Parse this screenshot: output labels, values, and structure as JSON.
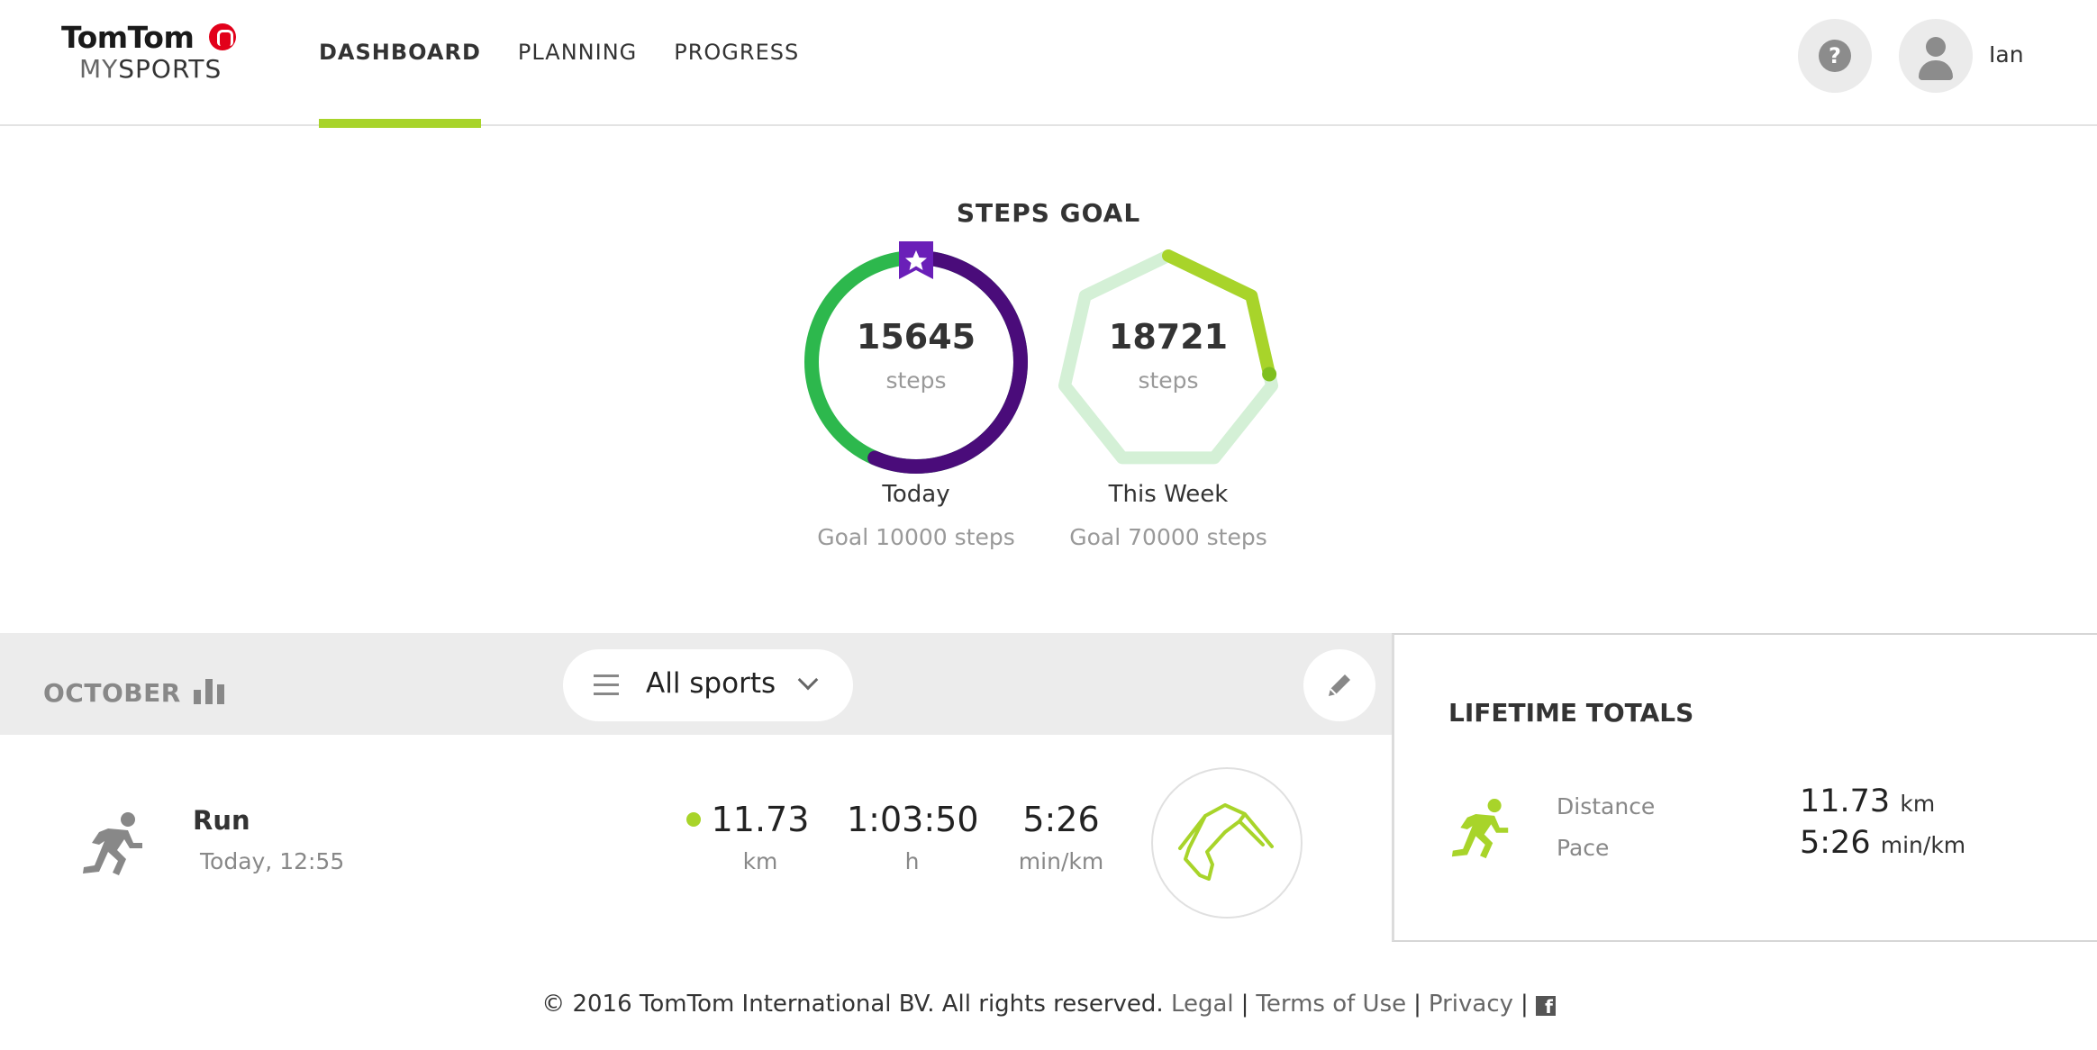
{
  "brand": {
    "name_top": "TomTom",
    "name_sub_dim": "MY",
    "name_sub": "SPORTS",
    "accent_color": "#a8d42a",
    "logo_color": "#e2001a"
  },
  "nav": {
    "items": [
      {
        "label": "DASHBOARD",
        "active": true
      },
      {
        "label": "PLANNING",
        "active": false
      },
      {
        "label": "PROGRESS",
        "active": false
      }
    ]
  },
  "header": {
    "help_icon": "help-bubble-icon",
    "user_name": "Ian"
  },
  "steps_goal": {
    "title": "STEPS GOAL",
    "today": {
      "count": "15645",
      "unit": "steps",
      "label": "Today",
      "goal": "Goal 10000 steps",
      "progress": 1.5645,
      "badge_icon": "star-ribbon-icon",
      "colors": {
        "start": "#2db84d",
        "over": "#4a0c7a"
      }
    },
    "week": {
      "count": "18721",
      "unit": "steps",
      "label": "This Week",
      "goal": "Goal 70000 steps",
      "progress": 0.2674,
      "colors": {
        "track_start": "#c6ebd9",
        "track_end": "#e1f4c8",
        "fill": "#a8d42a"
      }
    }
  },
  "activities": {
    "month": "OCTOBER",
    "chart_icon": "bar-chart-icon",
    "filter": {
      "label": "All sports",
      "menu_icon": "menu-icon",
      "chevron_icon": "chevron-down-icon"
    },
    "edit_icon": "pencil-icon",
    "items": [
      {
        "type": "Run",
        "when": "Today, 12:55",
        "icon": "runner-icon",
        "distance": "11.73",
        "distance_unit": "km",
        "duration": "1:03:50",
        "duration_unit": "h",
        "pace": "5:26",
        "pace_unit": "min/km"
      }
    ]
  },
  "lifetime": {
    "title": "LIFETIME TOTALS",
    "icon": "runner-icon",
    "distance_label": "Distance",
    "distance_value": "11.73",
    "distance_unit": "km",
    "pace_label": "Pace",
    "pace_value": "5:26",
    "pace_unit": "min/km"
  },
  "footer": {
    "copyright": "© 2016 TomTom International BV. All rights reserved.",
    "links": [
      "Legal",
      "Terms of Use",
      "Privacy"
    ],
    "separator": "|",
    "social_icon": "facebook-icon"
  }
}
